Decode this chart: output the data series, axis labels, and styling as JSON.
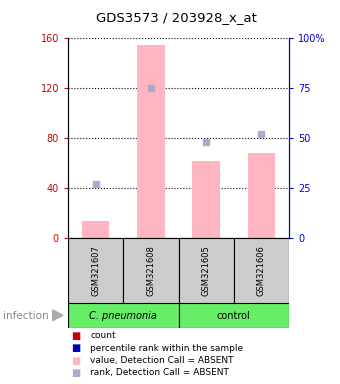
{
  "title": "GDS3573 / 203928_x_at",
  "samples": [
    "GSM321607",
    "GSM321608",
    "GSM321605",
    "GSM321606"
  ],
  "bar_values": [
    14,
    155,
    62,
    68
  ],
  "bar_color": "#FFB6C1",
  "rank_dot_values": [
    43,
    120,
    77,
    83
  ],
  "rank_dot_color": "#AAAACC",
  "ylim_left": [
    0,
    160
  ],
  "ylim_right": [
    0,
    100
  ],
  "yticks_left": [
    0,
    40,
    80,
    120,
    160
  ],
  "yticks_right": [
    0,
    25,
    50,
    75,
    100
  ],
  "ytick_labels_left": [
    "0",
    "40",
    "80",
    "120",
    "160"
  ],
  "ytick_labels_right": [
    "0",
    "25",
    "50",
    "75",
    "100%"
  ],
  "left_axis_color": "#CC0000",
  "right_axis_color": "#0000CC",
  "legend_labels": [
    "count",
    "percentile rank within the sample",
    "value, Detection Call = ABSENT",
    "rank, Detection Call = ABSENT"
  ],
  "legend_colors": [
    "#CC0000",
    "#0000BB",
    "#FFB6C1",
    "#AAAACC"
  ],
  "infection_label": "infection",
  "group1_label": "C. pneumonia",
  "group2_label": "control",
  "group_color": "#66EE66",
  "sample_box_color": "#CCCCCC",
  "bar_width": 0.5
}
